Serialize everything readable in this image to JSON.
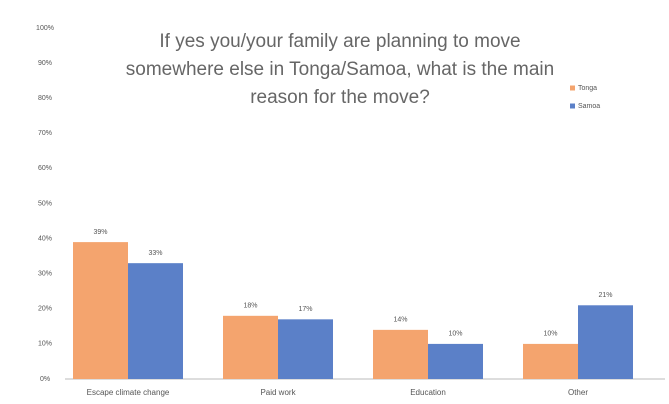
{
  "chart_data": {
    "type": "bar",
    "title": "If yes you/your family are planning to move somewhere else in Tonga/Samoa, what is the main reason for the move?",
    "categories": [
      "Escape climate change",
      "Paid work",
      "Education",
      "Other"
    ],
    "series": [
      {
        "name": "Tonga",
        "color": "#f4a46e",
        "values": [
          39,
          18,
          14,
          10
        ],
        "value_labels": [
          "39%",
          "18%",
          "14%",
          "10%"
        ]
      },
      {
        "name": "Samoa",
        "color": "#5b80c8",
        "values": [
          33,
          17,
          10,
          21
        ],
        "value_labels": [
          "33%",
          "17%",
          "10%",
          "21%"
        ]
      }
    ],
    "ylim": [
      0,
      100
    ],
    "yticks": [
      {
        "value": 0,
        "label": "0%"
      },
      {
        "value": 10,
        "label": "10%"
      },
      {
        "value": 20,
        "label": "20%"
      },
      {
        "value": 30,
        "label": "30%"
      },
      {
        "value": 40,
        "label": "40%"
      },
      {
        "value": 50,
        "label": "50%"
      },
      {
        "value": 60,
        "label": "60%"
      },
      {
        "value": 70,
        "label": "70%"
      },
      {
        "value": 80,
        "label": "80%"
      },
      {
        "value": 90,
        "label": "90%"
      },
      {
        "value": 100,
        "label": "100%"
      }
    ],
    "grid": false,
    "legend": "upper right"
  }
}
